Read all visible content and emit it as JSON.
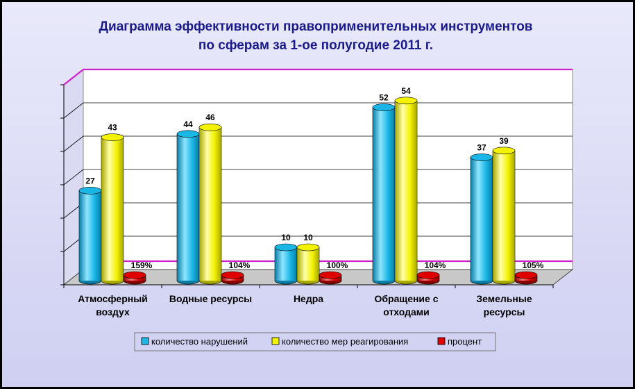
{
  "chart_data": {
    "type": "bar",
    "title": [
      "Диаграмма  эффективности  правоприменительных  инструментов",
      "по  сферам  за  1-ое полугодие 2011 г."
    ],
    "categories": [
      [
        "Атмосферный",
        "воздух"
      ],
      [
        "Водные ресурсы"
      ],
      [
        "Недра"
      ],
      [
        "Обращение с",
        "отходами"
      ],
      [
        "Земельные",
        "ресурсы"
      ]
    ],
    "series": [
      {
        "name": "количество нарушений",
        "values": [
          27,
          44,
          10,
          52,
          37
        ],
        "labels": [
          "27",
          "44",
          "10",
          "52",
          "37"
        ]
      },
      {
        "name": "количество мер реагирования",
        "values": [
          43,
          46,
          10,
          54,
          39
        ],
        "labels": [
          "43",
          "46",
          "10",
          "54",
          "39"
        ]
      },
      {
        "name": "процент",
        "values": [
          159,
          104,
          100,
          104,
          105
        ],
        "labels": [
          "159%",
          "104%",
          "100%",
          "104%",
          "105%"
        ]
      }
    ],
    "ylim": [
      0,
      60
    ],
    "grid": true,
    "legend_position": "bottom",
    "colors": {
      "series": [
        "#19b6e6",
        "#f3f200",
        "#e00000"
      ],
      "series_dark": [
        "#0c7ea6",
        "#a8a800",
        "#8a0000"
      ],
      "series_light": [
        "#8ee6ff",
        "#ffffa8",
        "#ff8080"
      ],
      "reference_line": "#cc22cc",
      "title": "#1a1a8c"
    }
  }
}
